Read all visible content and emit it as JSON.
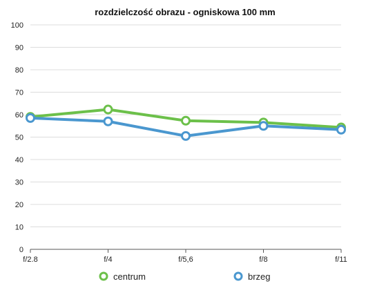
{
  "chart_data": {
    "type": "line",
    "title": "rozdzielczość obrazu - ogniskowa 100 mm",
    "xlabel": "",
    "ylabel": "",
    "categories": [
      "f/2.8",
      "f/4",
      "f/5,6",
      "f/8",
      "f/11"
    ],
    "ylim": [
      0,
      100
    ],
    "yticks": [
      "0",
      "10",
      "20",
      "30",
      "40",
      "50",
      "60",
      "70",
      "80",
      "90",
      "100"
    ],
    "grid": true,
    "legend": "bottom",
    "series": [
      {
        "name": "centrum",
        "color": "#6cc04a",
        "values": [
          59,
          62.3,
          57.3,
          56.5,
          54.3
        ]
      },
      {
        "name": "brzeg",
        "color": "#4a97cf",
        "values": [
          58.5,
          57,
          50.5,
          55,
          53.3
        ]
      }
    ]
  }
}
